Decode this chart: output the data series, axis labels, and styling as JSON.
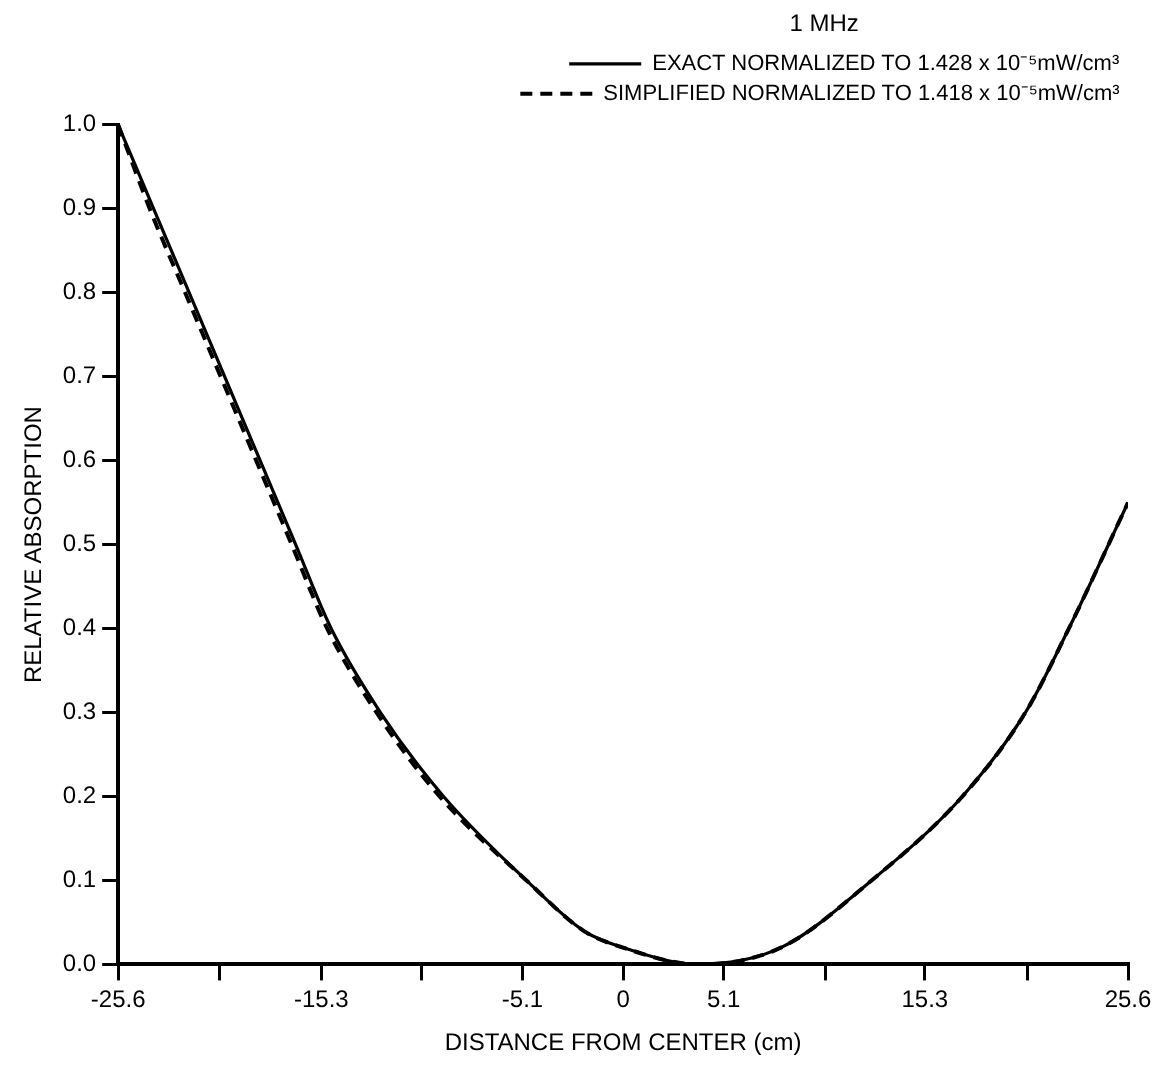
{
  "chart_data": {
    "type": "line",
    "xlabel": "DISTANCE FROM CENTER (cm)",
    "ylabel": "RELATIVE ABSORPTION",
    "legend_title": "1 MHz",
    "xlim": [
      -25.6,
      25.6
    ],
    "xticks": [
      {
        "value": -25.6,
        "label": "-25.6"
      },
      {
        "value": -20.48,
        "label": null
      },
      -15.3,
      {
        "value": -10.24,
        "label": null
      },
      -5.1,
      0,
      5.1,
      {
        "value": 10.24,
        "label": null
      },
      15.3,
      {
        "value": 20.48,
        "label": null
      },
      25.6
    ],
    "ylim": [
      0,
      1
    ],
    "yticks": [
      {
        "value": 0,
        "label": "0.0"
      },
      0.1,
      0.2,
      0.3,
      0.4,
      0.5,
      0.6,
      0.7,
      0.8,
      0.9,
      {
        "value": 1,
        "label": "1.0"
      }
    ],
    "grid": false,
    "legend": "top right",
    "marker": "none",
    "series": [
      {
        "name": "EXACT NORMALIZED TO 1.428 x 10⁻⁵mW/cm³",
        "color": "#000000",
        "line_style": "solid",
        "x": [
          -25.6,
          -23.8,
          -22.0,
          -20.2,
          -18.4,
          -16.6,
          -14.8,
          -12.3,
          -9.1,
          -4.9,
          -2,
          0,
          3.8,
          8,
          12.6,
          17.2,
          20.4,
          22.6,
          25.6
        ],
        "values": [
          1.0,
          0.9,
          0.8,
          0.7,
          0.6,
          0.5,
          0.4,
          0.3,
          0.2,
          0.1,
          0.04,
          0.02,
          0,
          0.02,
          0.1,
          0.2,
          0.3,
          0.4,
          0.55
        ]
      },
      {
        "name": "SIMPLIFIED NORMALIZED TO 1.418 x 10⁻⁵mW/cm³",
        "color": "#000000",
        "line_style": "dashed",
        "x": [
          -25.6,
          -24.0,
          -22.2,
          -20.4,
          -18.6,
          -16.8,
          -15.0,
          -12.5,
          -9.3,
          -4.9,
          -2,
          0,
          3.8,
          8,
          12.6,
          17.2,
          20.4,
          22.6,
          25.6
        ],
        "values": [
          1.0,
          0.9,
          0.8,
          0.7,
          0.6,
          0.5,
          0.4,
          0.3,
          0.2,
          0.1,
          0.04,
          0.02,
          0,
          0.02,
          0.1,
          0.2,
          0.3,
          0.4,
          0.55
        ]
      }
    ]
  }
}
